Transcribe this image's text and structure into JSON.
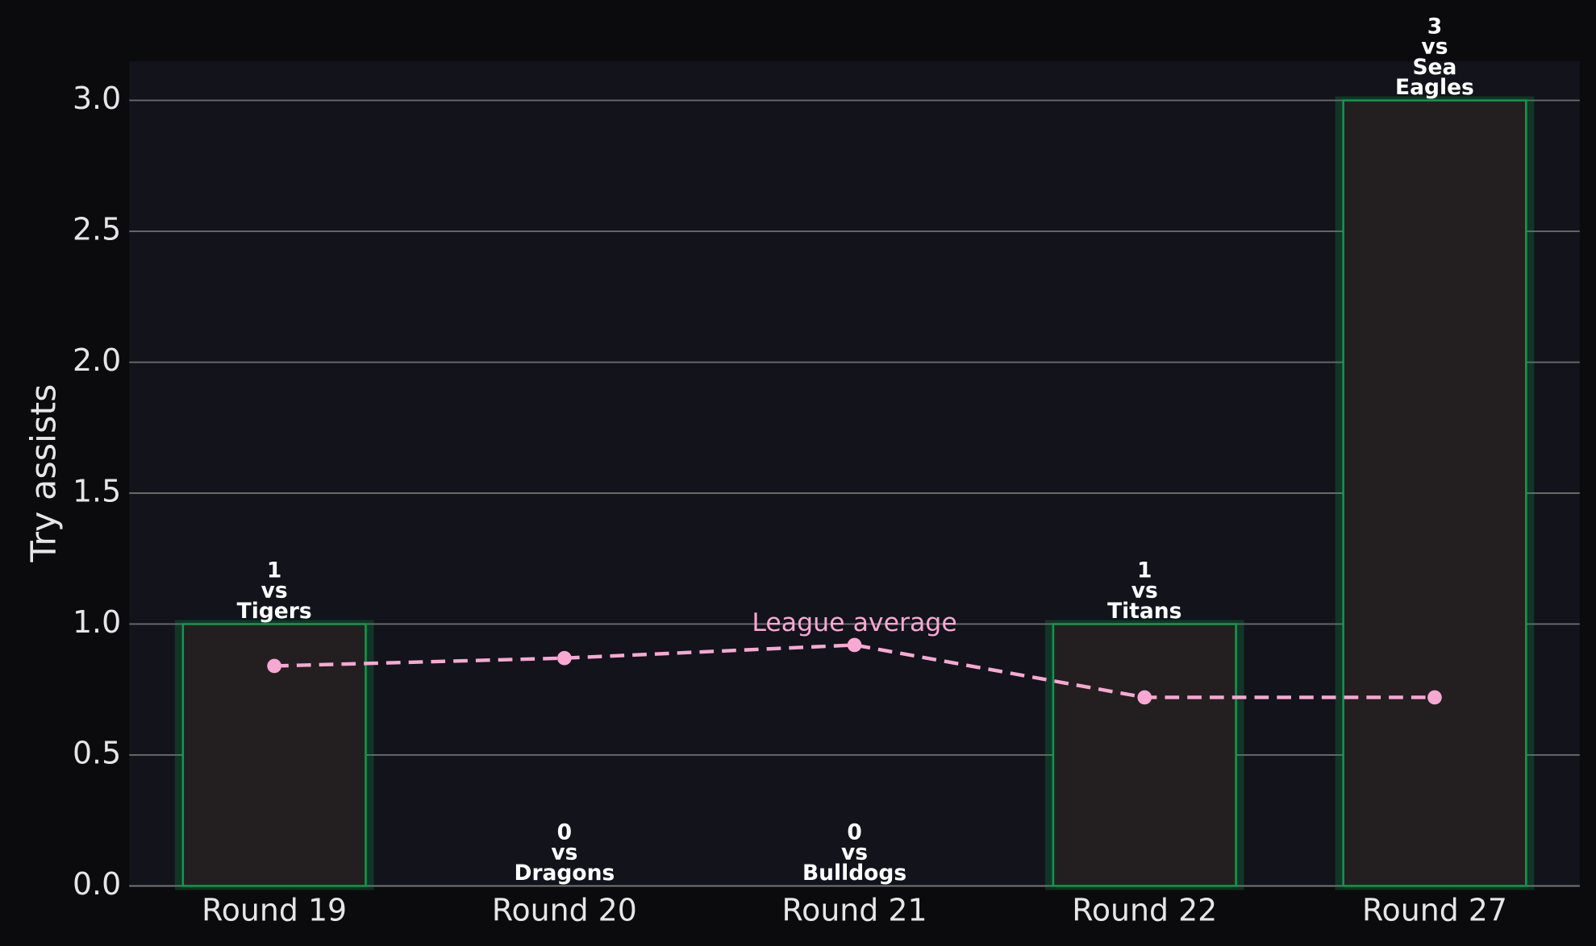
{
  "chart_data": {
    "type": "bar",
    "ylabel": "Try assists",
    "categories": [
      "Round 19",
      "Round 20",
      "Round 21",
      "Round 22",
      "Round 27"
    ],
    "values": [
      1,
      0,
      0,
      1,
      3
    ],
    "opponents": [
      "Tigers",
      "Dragons",
      "Bulldogs",
      "Titans",
      "Sea Eagles"
    ],
    "label_connector": "vs",
    "color": "#0f9a4c",
    "bar_fill": "#231f20",
    "line": {
      "name": "League average",
      "color": "#f9a8d4",
      "values": [
        0.84,
        0.87,
        0.92,
        0.72,
        0.72
      ]
    },
    "ylim": [
      0,
      3.15
    ],
    "yticks": [
      {
        "value": 0,
        "label": "0.0"
      },
      {
        "value": 0.5,
        "label": "0.5"
      },
      {
        "value": 1,
        "label": "1.0"
      },
      {
        "value": 1.5,
        "label": "1.5"
      },
      {
        "value": 2,
        "label": "2.0"
      },
      {
        "value": 2.5,
        "label": "2.5"
      },
      {
        "value": 3,
        "label": "3.0"
      }
    ],
    "grid": true
  }
}
